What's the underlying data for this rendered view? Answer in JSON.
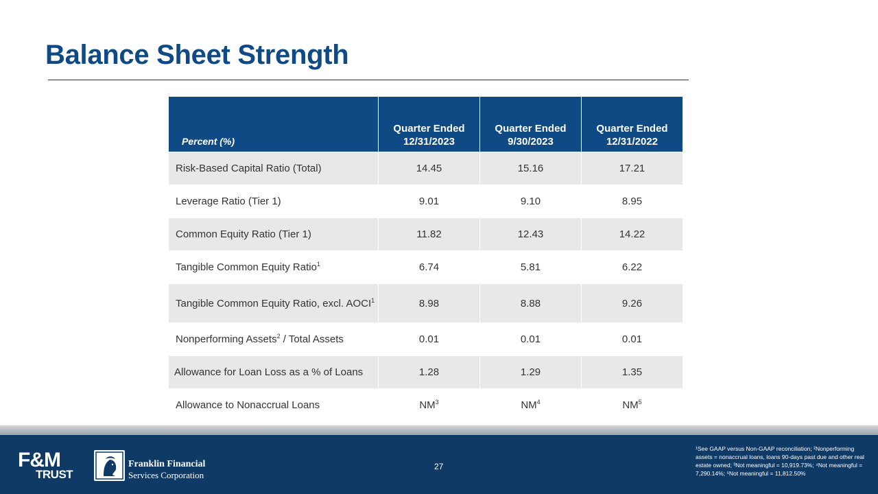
{
  "header": {
    "title": "Balance Sheet Strength"
  },
  "table": {
    "columns": [
      {
        "label": "Percent (%)"
      },
      {
        "line1": "Quarter Ended",
        "line2": "12/31/2023"
      },
      {
        "line1": "Quarter Ended",
        "line2": "9/30/2023"
      },
      {
        "line1": "Quarter Ended",
        "line2": "12/31/2022"
      }
    ],
    "rows": [
      {
        "label": "Risk-Based Capital Ratio (Total)",
        "sup": "",
        "label_suffix": "",
        "values": [
          "14.45",
          "15.16",
          "17.21"
        ]
      },
      {
        "label": "Leverage Ratio (Tier 1)",
        "sup": "",
        "label_suffix": "",
        "values": [
          "9.01",
          "9.10",
          "8.95"
        ]
      },
      {
        "label": "Common Equity Ratio (Tier 1)",
        "sup": "",
        "label_suffix": "",
        "values": [
          "11.82",
          "12.43",
          "14.22"
        ]
      },
      {
        "label": "Tangible Common Equity Ratio",
        "sup": "1",
        "label_suffix": "",
        "values": [
          "6.74",
          "5.81",
          "6.22"
        ]
      },
      {
        "label": "Tangible Common Equity Ratio, excl. AOCI",
        "sup": "1",
        "label_suffix": "",
        "values": [
          "8.98",
          "8.88",
          "9.26"
        ]
      },
      {
        "label": "Nonperforming Assets",
        "sup": "2",
        "label_suffix": " / Total Assets",
        "values": [
          "0.01",
          "0.01",
          "0.01"
        ]
      },
      {
        "label": "Allowance for Loan Loss as a % of Loans",
        "sup": "",
        "label_suffix": "",
        "values": [
          "1.28",
          "1.29",
          "1.35"
        ]
      },
      {
        "label": "Allowance to Nonaccrual Loans",
        "sup": "",
        "label_suffix": "",
        "values": [
          "NM",
          "NM",
          "NM"
        ],
        "value_sups": [
          "3",
          "4",
          "5"
        ]
      }
    ]
  },
  "footer": {
    "page_number": "27",
    "logo_fm": "F&M",
    "logo_trust": "TRUST",
    "company_line1": "Franklin Financial",
    "company_line2": "Services Corporation",
    "footnote": "¹See GAAP versus Non-GAAP reconciliation; ²Nonperforming assets = nonaccrual loans, loans 90-days past due and other real estate owned; ³Not meaningful = 10,919.73%; ⁴Not meaningful = 7,290.14%; ⁵Not meaningful = 11,812.50%"
  },
  "colors": {
    "brand_blue": "#0f4a84",
    "row_shade": "#e8e8e8",
    "footer_bg": "#0f3a66"
  }
}
